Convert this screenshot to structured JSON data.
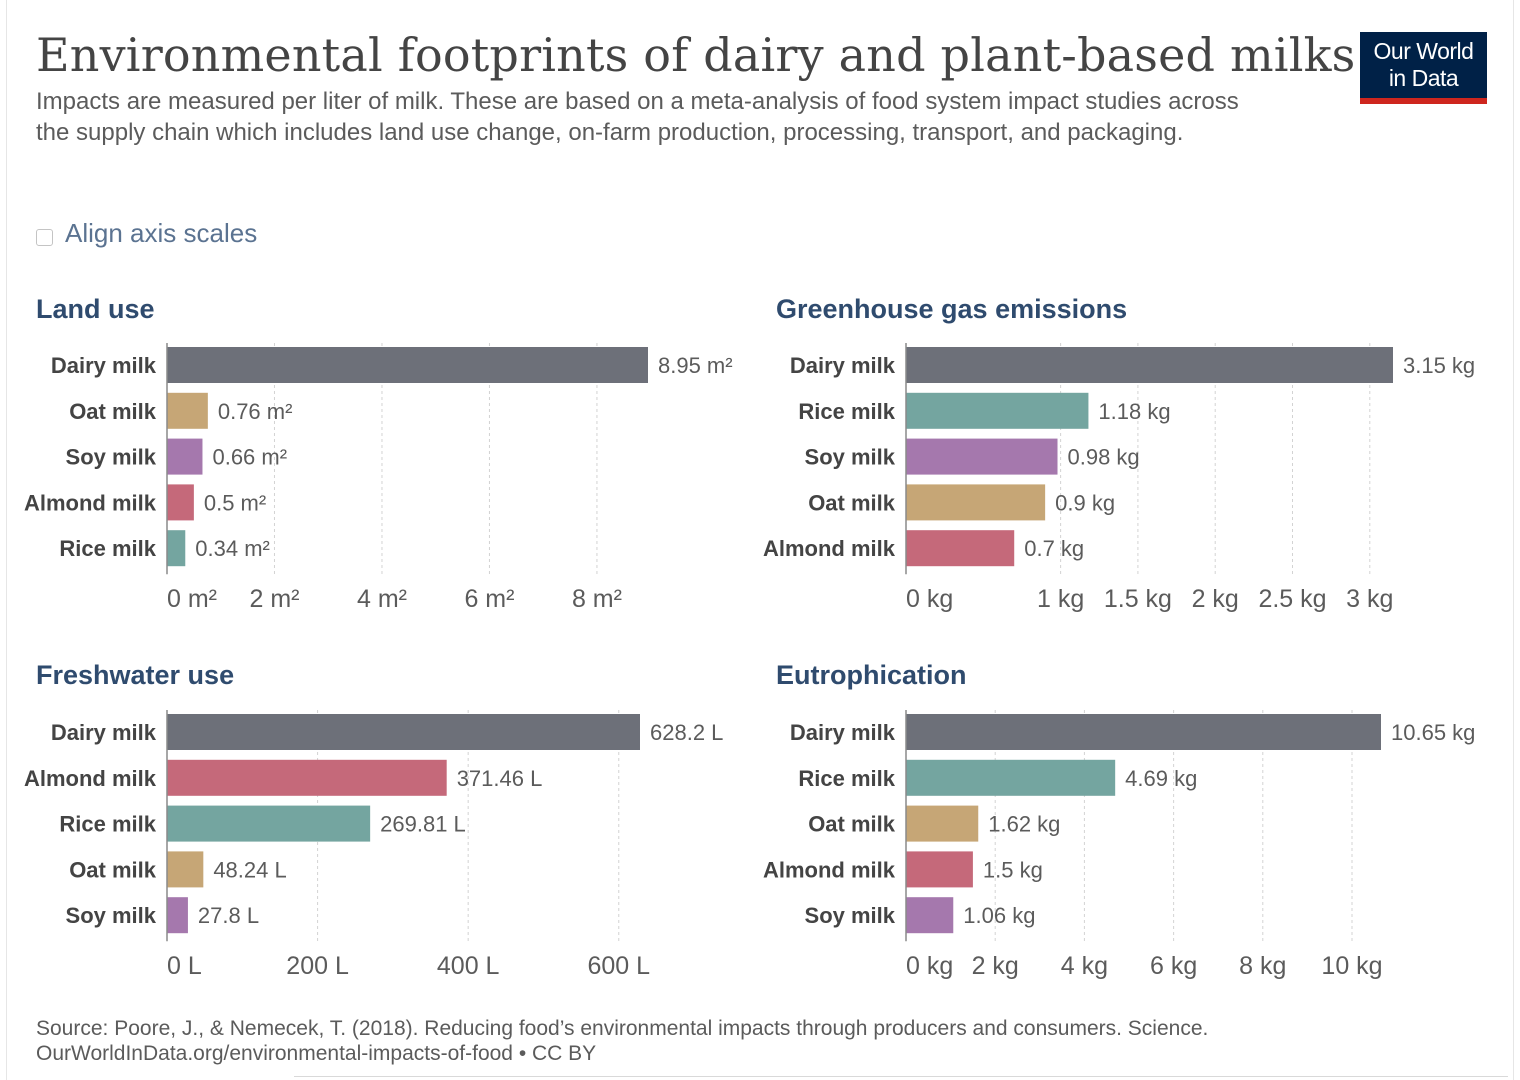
{
  "header": {
    "title": "Environmental footprints of dairy and plant-based milks",
    "subtitle": "Impacts are measured per liter of milk. These are based on a meta-analysis of food system impact studies across the supply chain which includes land use change, on-farm production, processing, transport, and packaging.",
    "logo_line1": "Our World",
    "logo_line2": "in Data"
  },
  "controls": {
    "align_axis_label": "Align axis scales",
    "align_axis_checked": false
  },
  "colors": {
    "Dairy milk": "#6d7079",
    "Oat milk": "#c6a676",
    "Soy milk": "#a578ad",
    "Almond milk": "#c5697a",
    "Rice milk": "#74a5a0",
    "axis": "#8a8a8a",
    "grid": "#d3d3d3",
    "logo_bg": "#002147",
    "logo_accent": "#ce261e"
  },
  "chart_data": [
    {
      "type": "bar",
      "title": "Land use",
      "categories": [
        "Dairy milk",
        "Oat milk",
        "Soy milk",
        "Almond milk",
        "Rice milk"
      ],
      "values": [
        8.95,
        0.76,
        0.66,
        0.5,
        0.34
      ],
      "value_labels": [
        "8.95 m²",
        "0.76 m²",
        "0.66 m²",
        "0.5 m²",
        "0.34 m²"
      ],
      "xlim": [
        0,
        8.95
      ],
      "ticks": [
        0,
        2,
        4,
        6,
        8
      ],
      "tick_labels": [
        "0 m²",
        "2 m²",
        "4 m²",
        "6 m²",
        "8 m²"
      ],
      "grid": true
    },
    {
      "type": "bar",
      "title": "Greenhouse gas emissions",
      "categories": [
        "Dairy milk",
        "Rice milk",
        "Soy milk",
        "Oat milk",
        "Almond milk"
      ],
      "values": [
        3.15,
        1.18,
        0.98,
        0.9,
        0.7
      ],
      "value_labels": [
        "3.15 kg",
        "1.18 kg",
        "0.98 kg",
        "0.9 kg",
        "0.7 kg"
      ],
      "xlim": [
        0,
        3.15
      ],
      "ticks": [
        0,
        1,
        1.5,
        2,
        2.5,
        3
      ],
      "tick_labels": [
        "0 kg",
        "1 kg",
        "1.5 kg",
        "2 kg",
        "2.5 kg",
        "3 kg"
      ],
      "grid": true
    },
    {
      "type": "bar",
      "title": "Freshwater use",
      "categories": [
        "Dairy milk",
        "Almond milk",
        "Rice milk",
        "Oat milk",
        "Soy milk"
      ],
      "values": [
        628.2,
        371.46,
        269.81,
        48.24,
        27.8
      ],
      "value_labels": [
        "628.2 L",
        "371.46 L",
        "269.81 L",
        "48.24 L",
        "27.8 L"
      ],
      "xlim": [
        0,
        628.2
      ],
      "ticks": [
        0,
        200,
        400,
        600
      ],
      "tick_labels": [
        "0 L",
        "200 L",
        "400 L",
        "600 L"
      ],
      "grid": true
    },
    {
      "type": "bar",
      "title": "Eutrophication",
      "categories": [
        "Dairy milk",
        "Rice milk",
        "Oat milk",
        "Almond milk",
        "Soy milk"
      ],
      "values": [
        10.65,
        4.69,
        1.62,
        1.5,
        1.06
      ],
      "value_labels": [
        "10.65 kg",
        "4.69 kg",
        "1.62 kg",
        "1.5 kg",
        "1.06 kg"
      ],
      "xlim": [
        0,
        10.65
      ],
      "ticks": [
        0,
        2,
        4,
        6,
        8,
        10
      ],
      "tick_labels": [
        "0 kg",
        "2 kg",
        "4 kg",
        "6 kg",
        "8 kg",
        "10 kg"
      ],
      "grid": true
    }
  ],
  "footer": {
    "source": "Source: Poore, J., & Nemecek, T. (2018). Reducing food’s environmental impacts through producers and consumers. Science.",
    "url": "OurWorldInData.org/environmental-impacts-of-food • CC BY"
  }
}
